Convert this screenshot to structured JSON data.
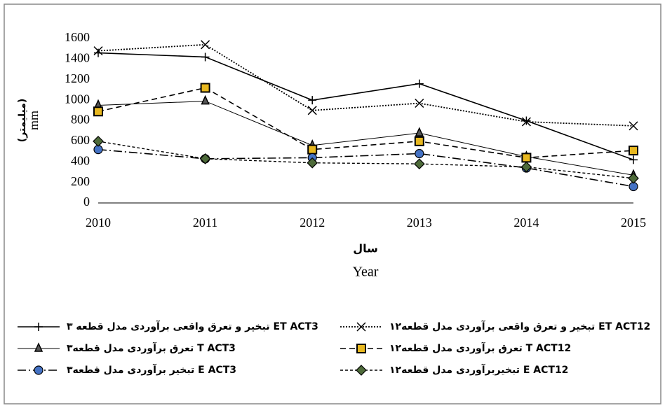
{
  "chart_data": {
    "type": "line",
    "x_label": "سال",
    "x_label_en": "Year",
    "y_label": "(میلیمتر)",
    "y_label_en": "mm",
    "categories": [
      "2010",
      "2011",
      "2012",
      "2013",
      "2014",
      "2015"
    ],
    "ylim": [
      0,
      1600
    ],
    "yticks": [
      0,
      200,
      400,
      600,
      800,
      1000,
      1200,
      1400,
      1600
    ],
    "grid": false,
    "series": [
      {
        "name": "تبخیر و تعرق واقعی برآوردی مدل قطعه ۳ ET ACT3",
        "color": "#000000",
        "marker": "plus",
        "dash": "solid",
        "values": [
          1460,
          1420,
          1000,
          1160,
          800,
          420
        ]
      },
      {
        "name": "تبخیر و تعرق واقعی برآوردی مدل قطعه۱۲ ET ACT12",
        "color": "#000000",
        "marker": "x",
        "dash": "dotted",
        "values": [
          1480,
          1540,
          900,
          970,
          790,
          750
        ]
      },
      {
        "name": "تعرق برآوردی مدل قطعه۳ T ACT3",
        "color": "#000000",
        "marker": "triangle",
        "dash": "thin",
        "values": [
          950,
          990,
          560,
          680,
          450,
          270
        ]
      },
      {
        "name": "تعرق برآوردی مدل قطعه۱۲ T ACT12",
        "color": "#e8b820",
        "marker": "square",
        "dash": "dashed",
        "values": [
          890,
          1120,
          520,
          600,
          440,
          510
        ]
      },
      {
        "name": "تبخیر برآوردی مدل قطعه۳ E ACT3",
        "color": "#4472c4",
        "marker": "circle",
        "dash": "dashdot",
        "values": [
          520,
          430,
          440,
          480,
          340,
          160
        ]
      },
      {
        "name": "تبخیربرآوردی مدل قطعه۱۲ E ACT12",
        "color": "#4e6b3a",
        "marker": "diamond",
        "dash": "shortdash",
        "values": [
          600,
          430,
          390,
          380,
          350,
          240
        ]
      }
    ]
  }
}
